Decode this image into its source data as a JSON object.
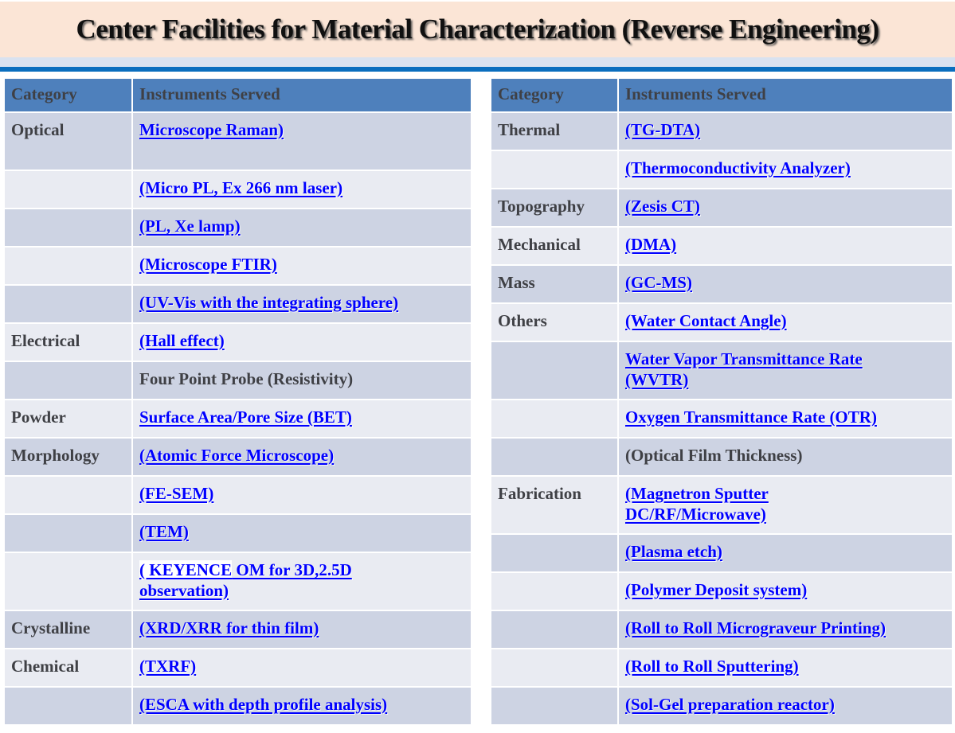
{
  "title": "Center Facilities for Material Characterization (Reverse Engineering)",
  "colors": {
    "banner_bg": "#FBE5D6",
    "strip_bg": "#D9E2F0",
    "rule": "#0A6EBE",
    "header_bg": "#4E80BC",
    "row_dark": "#CDD3E3",
    "row_light": "#E9EBF2",
    "link": "#0000FF",
    "text_dark": "#3F4045"
  },
  "tables": [
    {
      "name": "left",
      "headers": [
        "Category",
        "Instruments Served"
      ],
      "rows": [
        {
          "category": "Optical",
          "instrument": "Microscope Raman)",
          "link": true,
          "tall": true
        },
        {
          "category": "",
          "instrument": "(Micro PL, Ex 266 nm laser)",
          "link": true
        },
        {
          "category": "",
          "instrument": "(PL, Xe lamp)",
          "link": true
        },
        {
          "category": "",
          "instrument": "(Microscope FTIR)",
          "link": true
        },
        {
          "category": "",
          "instrument": "(UV-Vis with the integrating sphere)",
          "link": true
        },
        {
          "category": "Electrical",
          "instrument": "(Hall effect)",
          "link": true
        },
        {
          "category": "",
          "instrument": "Four Point Probe (Resistivity)",
          "link": false
        },
        {
          "category": "Powder",
          "instrument": "Surface Area/Pore Size (BET)",
          "link": true
        },
        {
          "category": "Morphology",
          "instrument": "(Atomic Force Microscope)",
          "link": true
        },
        {
          "category": "",
          "instrument": "(FE-SEM)",
          "link": true
        },
        {
          "category": "",
          "instrument": "(TEM)",
          "link": true
        },
        {
          "category": "",
          "instrument": "( KEYENCE OM for 3D,2.5D\nobservation)",
          "link": true,
          "tall": true,
          "highlight": "( KEYENCE"
        },
        {
          "category": "Crystalline",
          "instrument": "(XRD/XRR for thin film)",
          "link": true
        },
        {
          "category": "Chemical",
          "instrument": "(TXRF)",
          "link": true
        },
        {
          "category": "",
          "instrument": "(ESCA with depth profile analysis)",
          "link": true
        }
      ]
    },
    {
      "name": "right",
      "headers": [
        "Category",
        "Instruments Served"
      ],
      "rows": [
        {
          "category": "Thermal",
          "instrument": "(TG-DTA)",
          "link": true
        },
        {
          "category": "",
          "instrument": "(Thermoconductivity Analyzer)",
          "link": true
        },
        {
          "category": "Topography",
          "instrument": "(Zesis CT)",
          "link": true
        },
        {
          "category": "Mechanical",
          "instrument": "(DMA)",
          "link": true
        },
        {
          "category": "Mass",
          "instrument": "(GC-MS)",
          "link": true
        },
        {
          "category": "Others",
          "instrument": "(Water Contact Angle)",
          "link": true
        },
        {
          "category": "",
          "instrument": "Water Vapor Transmittance Rate\n(WVTR)",
          "link": true,
          "tall": true
        },
        {
          "category": "",
          "instrument": "Oxygen Transmittance Rate (OTR)",
          "link": true
        },
        {
          "category": "",
          "instrument": "(Optical Film Thickness)",
          "link": false
        },
        {
          "category": "Fabrication",
          "instrument": "(Magnetron Sputter\nDC/RF/Microwave)",
          "link": true,
          "tall": true
        },
        {
          "category": "",
          "instrument": "(Plasma etch)",
          "link": true
        },
        {
          "category": "",
          "instrument": "(Polymer Deposit system)",
          "link": true
        },
        {
          "category": "",
          "instrument": "(Roll to Roll Micrograveur Printing)",
          "link": true
        },
        {
          "category": "",
          "instrument": "(Roll to Roll Sputtering)",
          "link": true
        },
        {
          "category": "",
          "instrument": "(Sol-Gel preparation reactor)",
          "link": true
        }
      ]
    }
  ]
}
